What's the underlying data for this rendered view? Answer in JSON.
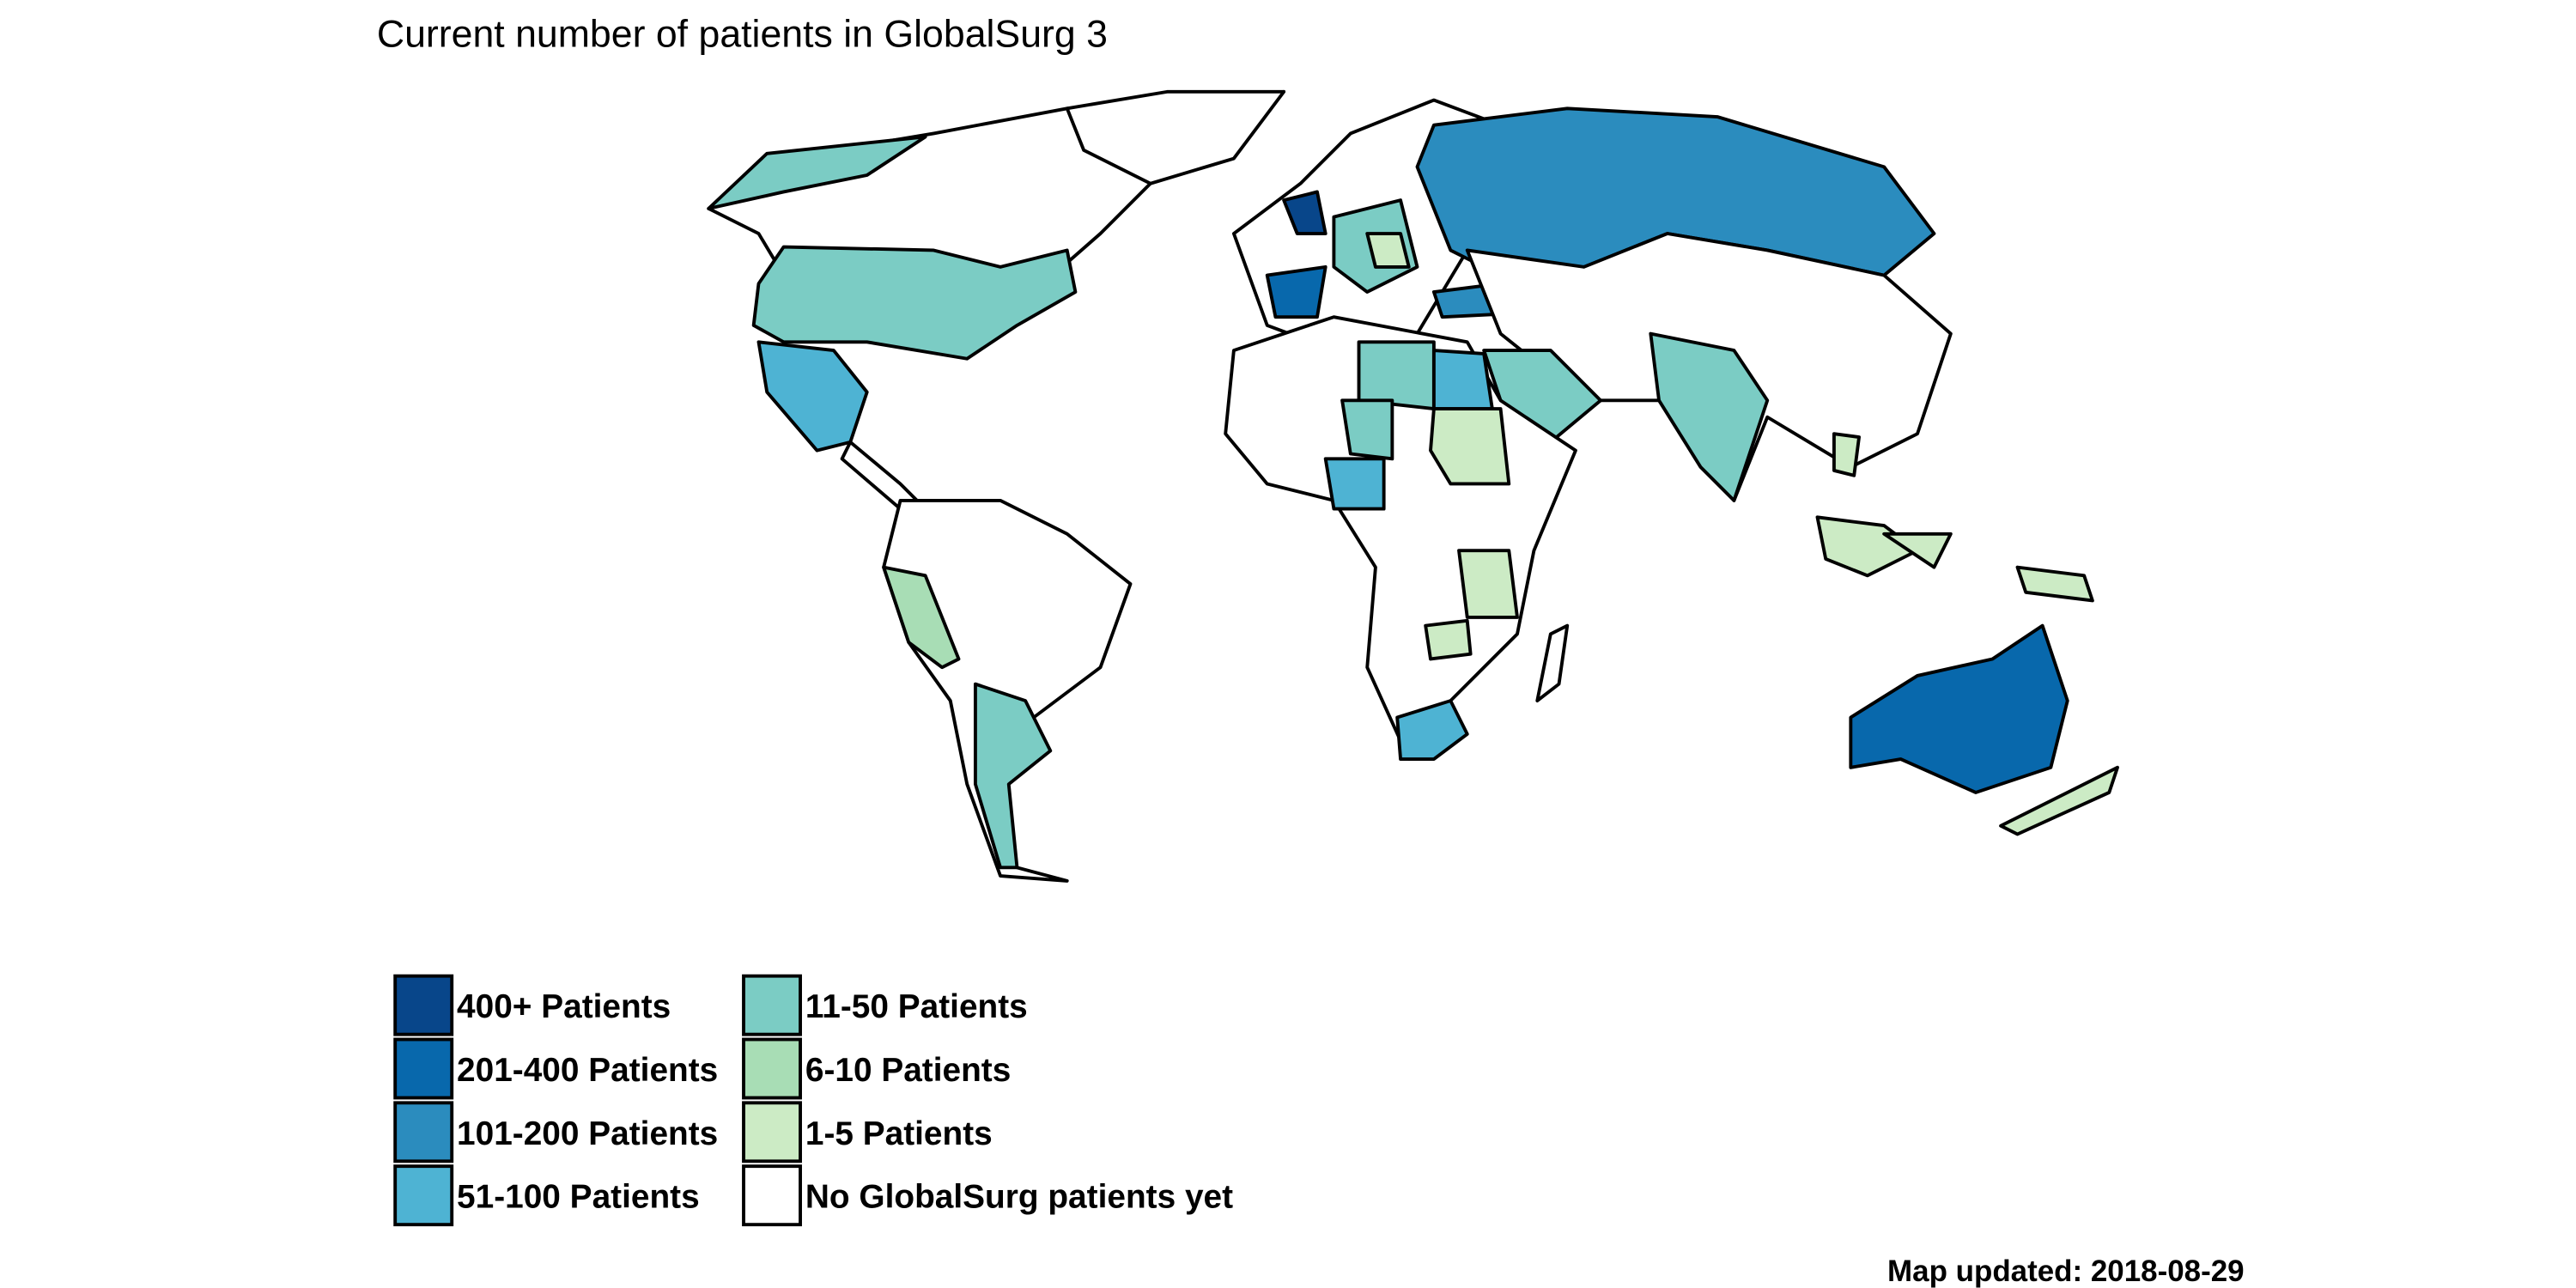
{
  "title": "Current number of patients in GlobalSurg 3",
  "legend": {
    "items": [
      {
        "label": "400+ Patients",
        "color": "#08468a"
      },
      {
        "label": "201-400 Patients",
        "color": "#0868ac"
      },
      {
        "label": "101-200 Patients",
        "color": "#2b8cbe"
      },
      {
        "label": "51-100 Patients",
        "color": "#4eb3d3"
      },
      {
        "label": "11-50 Patients",
        "color": "#7bccc4"
      },
      {
        "label": "6-10 Patients",
        "color": "#a8ddb5"
      },
      {
        "label": "1-5 Patients",
        "color": "#ccebc5"
      },
      {
        "label": "No GlobalSurg patients yet",
        "color": "#ffffff"
      }
    ]
  },
  "footer": "Map updated: 2018-08-29"
}
